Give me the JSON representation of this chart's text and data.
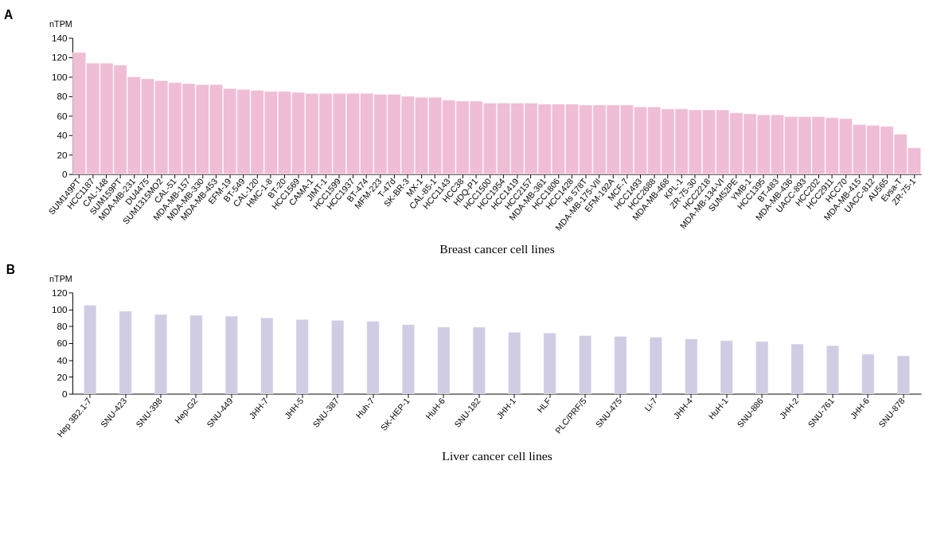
{
  "chart_data": [
    {
      "type": "bar",
      "title": "A",
      "ylabel": "nTPM",
      "xlabel": "Breast cancer cell lines",
      "color": "#efbdd5",
      "ylim": [
        0,
        140
      ],
      "yticks": [
        0,
        20,
        40,
        60,
        80,
        100,
        120,
        140
      ],
      "grid": false,
      "categories": [
        "SUM149PT",
        "HCC1187",
        "CAL-148",
        "SUM159PT",
        "MDA-MB-231",
        "DU4475",
        "SUM1315MO2",
        "CAL-51",
        "MDA-MB-157",
        "MDA-MB-330",
        "MDA-MB-453",
        "EFM-19",
        "BT-549",
        "CAL-120",
        "HMC-1-8",
        "BT-20",
        "HCC1569",
        "CAMA-1",
        "JIMT-1",
        "HCC1599",
        "HCC1937",
        "BT-474",
        "MFM-223",
        "T-47d",
        "SK-BR-3",
        "MX-1",
        "CAL-85-1",
        "HCC1143",
        "HCC38",
        "HDQ-P1",
        "HCC1500",
        "HCC1954",
        "HCC1419",
        "HCC2157",
        "MDA-MB-361",
        "HCC1806",
        "HCC1428",
        "Hs 578T",
        "MDA-MB-175-VII",
        "EFM-192A",
        "MCF-7",
        "HCC1493",
        "HCC2688",
        "MDA-MB-468",
        "KPL-1",
        "ZR-75-30",
        "HCC2218",
        "MDA-MB-134-VI",
        "SUM52PE",
        "YMB-1",
        "HCC1395",
        "BT-483",
        "MDA-MB-436",
        "UACC-893",
        "HCC202",
        "HCC2911",
        "HCC70",
        "MDA-MB-415",
        "UACC-812",
        "AU565",
        "Evsa-T",
        "ZR-75-1"
      ],
      "values": [
        125,
        114,
        114,
        112,
        100,
        98,
        96,
        94,
        93,
        92,
        92,
        88,
        87,
        86,
        85,
        85,
        84,
        83,
        83,
        83,
        83,
        83,
        82,
        82,
        80,
        79,
        79,
        76,
        75,
        75,
        73,
        73,
        73,
        73,
        72,
        72,
        72,
        71,
        71,
        71,
        71,
        69,
        69,
        67,
        67,
        66,
        66,
        66,
        63,
        62,
        61,
        61,
        59,
        59,
        59,
        58,
        57,
        51,
        50,
        49,
        41,
        27
      ]
    },
    {
      "type": "bar",
      "title": "B",
      "ylabel": "nTPM",
      "xlabel": "Liver cancer cell lines",
      "color": "#d0cce4",
      "ylim": [
        0,
        120
      ],
      "yticks": [
        0,
        20,
        40,
        60,
        80,
        100,
        120
      ],
      "grid": false,
      "categories": [
        "Hep 3B2.1-7",
        "SNU-423",
        "SNU-398",
        "Hep-G2",
        "SNU-449",
        "JHH-7",
        "JHH-5",
        "SNU-387",
        "Huh-7",
        "SK-HEP-1",
        "HuH-6",
        "SNU-182",
        "JHH-1",
        "HLF",
        "PLC/PRF/5",
        "SNU-475",
        "Li-7",
        "JHH-4",
        "HuH-1",
        "SNU-886",
        "JHH-2",
        "SNU-761",
        "JHH-6",
        "SNU-878"
      ],
      "values": [
        105,
        98,
        94,
        93,
        92,
        90,
        88,
        87,
        86,
        82,
        79,
        79,
        73,
        72,
        69,
        68,
        67,
        65,
        63,
        62,
        59,
        57,
        47,
        45
      ]
    }
  ]
}
